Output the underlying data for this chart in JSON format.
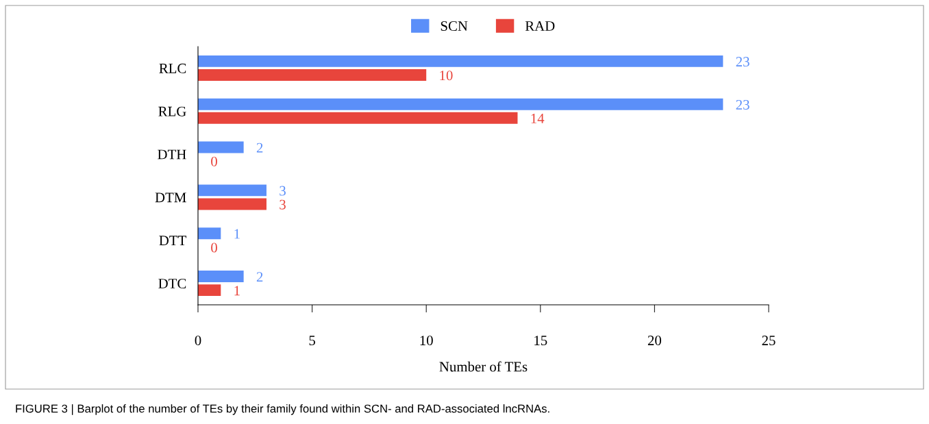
{
  "chart_data": {
    "type": "bar",
    "orientation": "horizontal",
    "categories": [
      "RLC",
      "RLG",
      "DTH",
      "DTM",
      "DTT",
      "DTC"
    ],
    "series": [
      {
        "name": "SCN",
        "color": "#5b8ff9",
        "values": [
          23,
          23,
          2,
          3,
          1,
          2
        ]
      },
      {
        "name": "RAD",
        "color": "#e8453c",
        "values": [
          10,
          14,
          0,
          3,
          0,
          1
        ]
      }
    ],
    "xlabel": "Number of TEs",
    "xlim": [
      0,
      25
    ],
    "xticks": [
      0,
      5,
      10,
      15,
      20,
      25
    ],
    "data_labels": true,
    "legend": "top",
    "grid": false,
    "annotations": [
      "FIGURE 3 | Barplot of the number of TEs by their family found within SCN- and RAD-associated lncRNAs."
    ]
  }
}
